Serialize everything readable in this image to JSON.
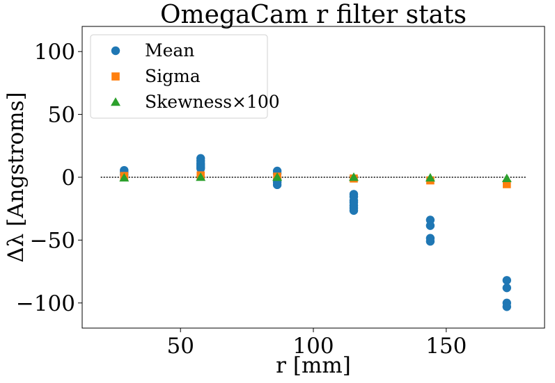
{
  "chart_data": {
    "type": "scatter",
    "title": "OmegaCam r filter stats",
    "xlabel": "r [mm]",
    "ylabel": "Δλ [Angstroms]",
    "xlim": [
      13,
      187
    ],
    "ylim": [
      -120,
      120
    ],
    "xticks": [
      50,
      100,
      150
    ],
    "xtick_labels": [
      "50",
      "100",
      "150"
    ],
    "yticks": [
      100,
      50,
      0,
      -50,
      -100
    ],
    "ytick_labels": [
      "100",
      "50",
      "0",
      "−50",
      "−100"
    ],
    "grid": false,
    "legend_position": "top-left",
    "reference_line": {
      "y": 0,
      "x_from": 20,
      "x_to": 180,
      "style": "dotted",
      "color": "#000000"
    },
    "series": [
      {
        "name": "Mean",
        "marker": "circle",
        "color": "#1f77b4",
        "points": [
          [
            28.8,
            5.5
          ],
          [
            28.8,
            4.0
          ],
          [
            28.8,
            2.0
          ],
          [
            57.6,
            15.0
          ],
          [
            57.6,
            13.0
          ],
          [
            57.6,
            11.0
          ],
          [
            57.6,
            9.5
          ],
          [
            57.6,
            8.0
          ],
          [
            57.6,
            7.0
          ],
          [
            86.4,
            5.0
          ],
          [
            86.4,
            3.0
          ],
          [
            86.4,
            -2.0
          ],
          [
            86.4,
            -4.0
          ],
          [
            86.4,
            -6.0
          ],
          [
            115.2,
            -13.5
          ],
          [
            115.2,
            -15.5
          ],
          [
            115.2,
            -18.5
          ],
          [
            115.2,
            -20.0
          ],
          [
            115.2,
            -22.5
          ],
          [
            115.2,
            -24.5
          ],
          [
            115.2,
            -26.5
          ],
          [
            144.0,
            -34.0
          ],
          [
            144.0,
            -38.5
          ],
          [
            144.0,
            -48.5
          ],
          [
            144.0,
            -51.0
          ],
          [
            172.8,
            -82.0
          ],
          [
            172.8,
            -88.0
          ],
          [
            172.8,
            -100.0
          ],
          [
            172.8,
            -103.0
          ]
        ]
      },
      {
        "name": "Sigma",
        "marker": "square",
        "color": "#ff7f0e",
        "points": [
          [
            28.8,
            1.0
          ],
          [
            57.6,
            1.5
          ],
          [
            86.4,
            0.5
          ],
          [
            115.2,
            -1.0
          ],
          [
            144.0,
            -2.5
          ],
          [
            172.8,
            -5.5
          ]
        ]
      },
      {
        "name": "Skewness×100",
        "marker": "triangle",
        "color": "#2ca02c",
        "points": [
          [
            28.8,
            -0.5
          ],
          [
            57.6,
            0.0
          ],
          [
            86.4,
            0.0
          ],
          [
            115.2,
            0.0
          ],
          [
            144.0,
            -0.5
          ],
          [
            172.8,
            -1.0
          ]
        ]
      }
    ]
  }
}
